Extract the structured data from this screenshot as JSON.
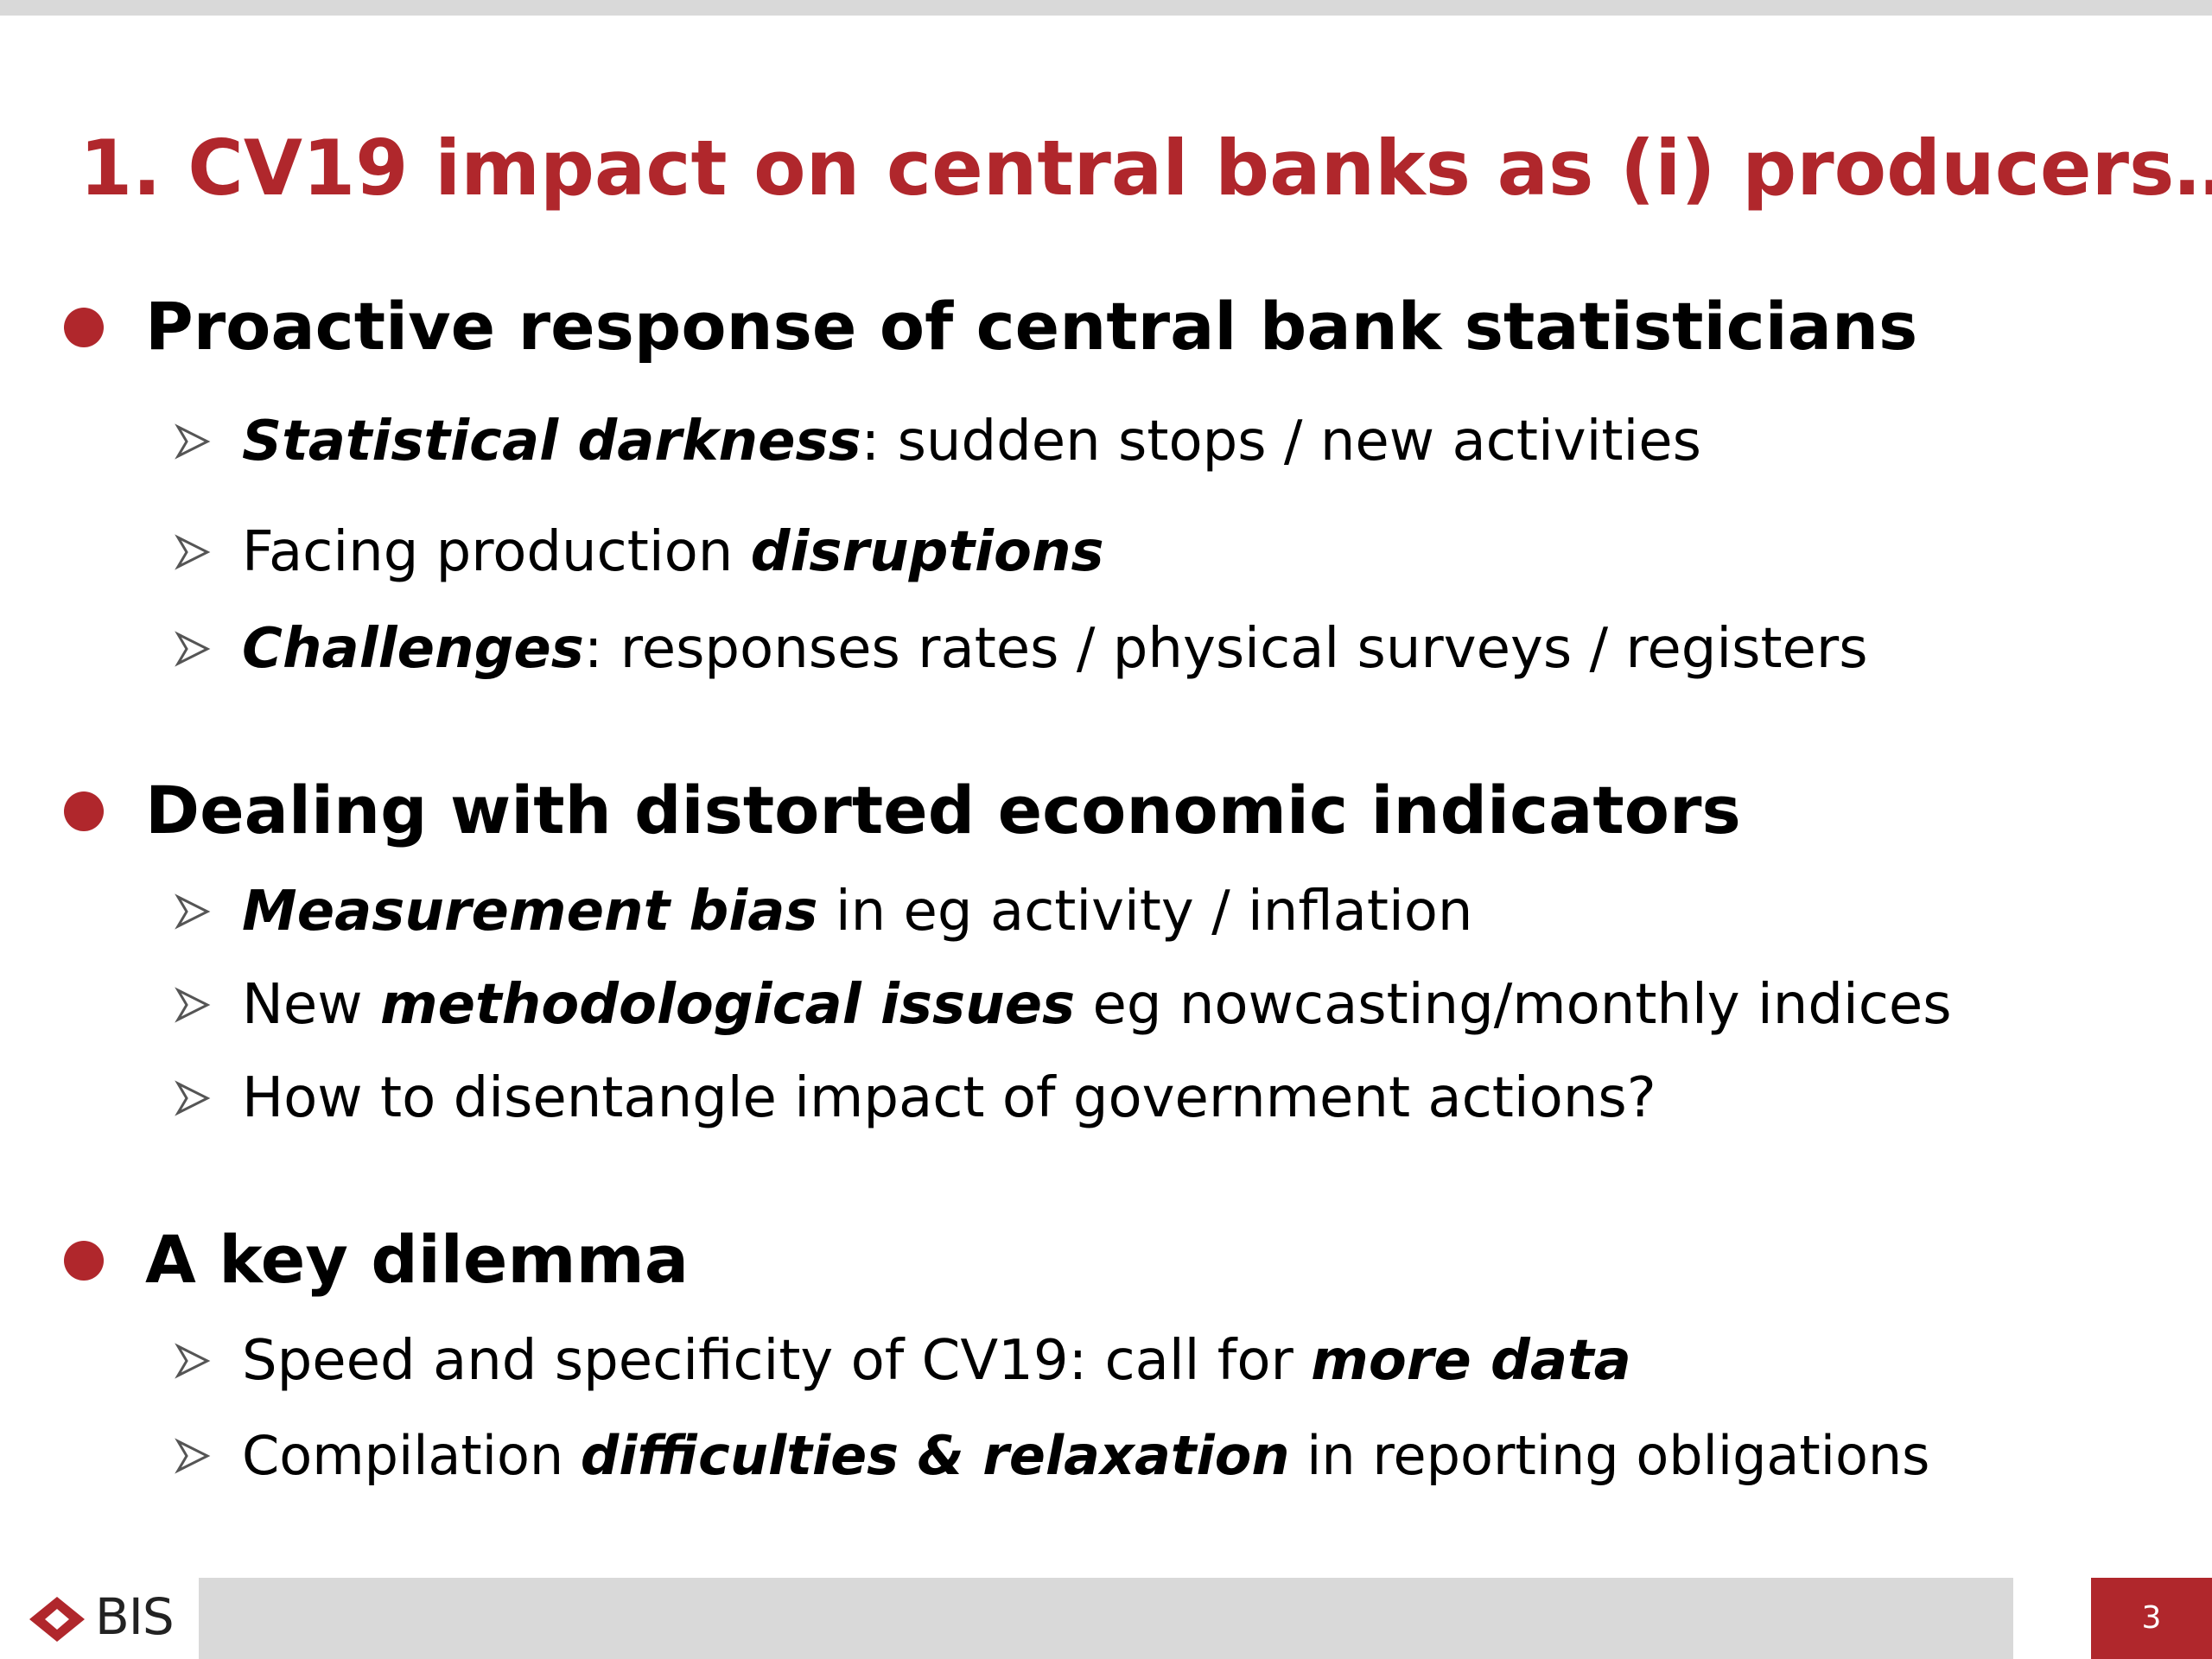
{
  "slide": {
    "title": "1. CV19 impact on central banks as (i) producers…",
    "page_number": "3"
  },
  "sections": [
    {
      "heading": "Proactive response of central bank statisticians",
      "items": [
        {
          "a": "Statistical darkness",
          "b": ": sudden stops / new activities"
        },
        {
          "a": "Facing production ",
          "b": "disruptions"
        },
        {
          "a": "Challenges",
          "b": ": responses rates / physical surveys / registers"
        }
      ]
    },
    {
      "heading": "Dealing with distorted economic indicators",
      "items": [
        {
          "a": "Measurement bias",
          "b": " in eg activity / inflation"
        },
        {
          "a": "New ",
          "b": "methodological issues",
          "c": " eg nowcasting/monthly indices"
        },
        {
          "a": "How to disentangle impact of government actions?"
        }
      ]
    },
    {
      "heading": "A key dilemma",
      "items": [
        {
          "a": "Speed and specificity of CV19: call for ",
          "b": "more data"
        },
        {
          "a": "Compilation ",
          "b": "difficulties & relaxation",
          "c": " in reporting obligations"
        }
      ]
    }
  ],
  "footer": {
    "logo_text": "BIS"
  },
  "colors": {
    "accent": "#b0272c",
    "bar": "#d9d9d9"
  }
}
